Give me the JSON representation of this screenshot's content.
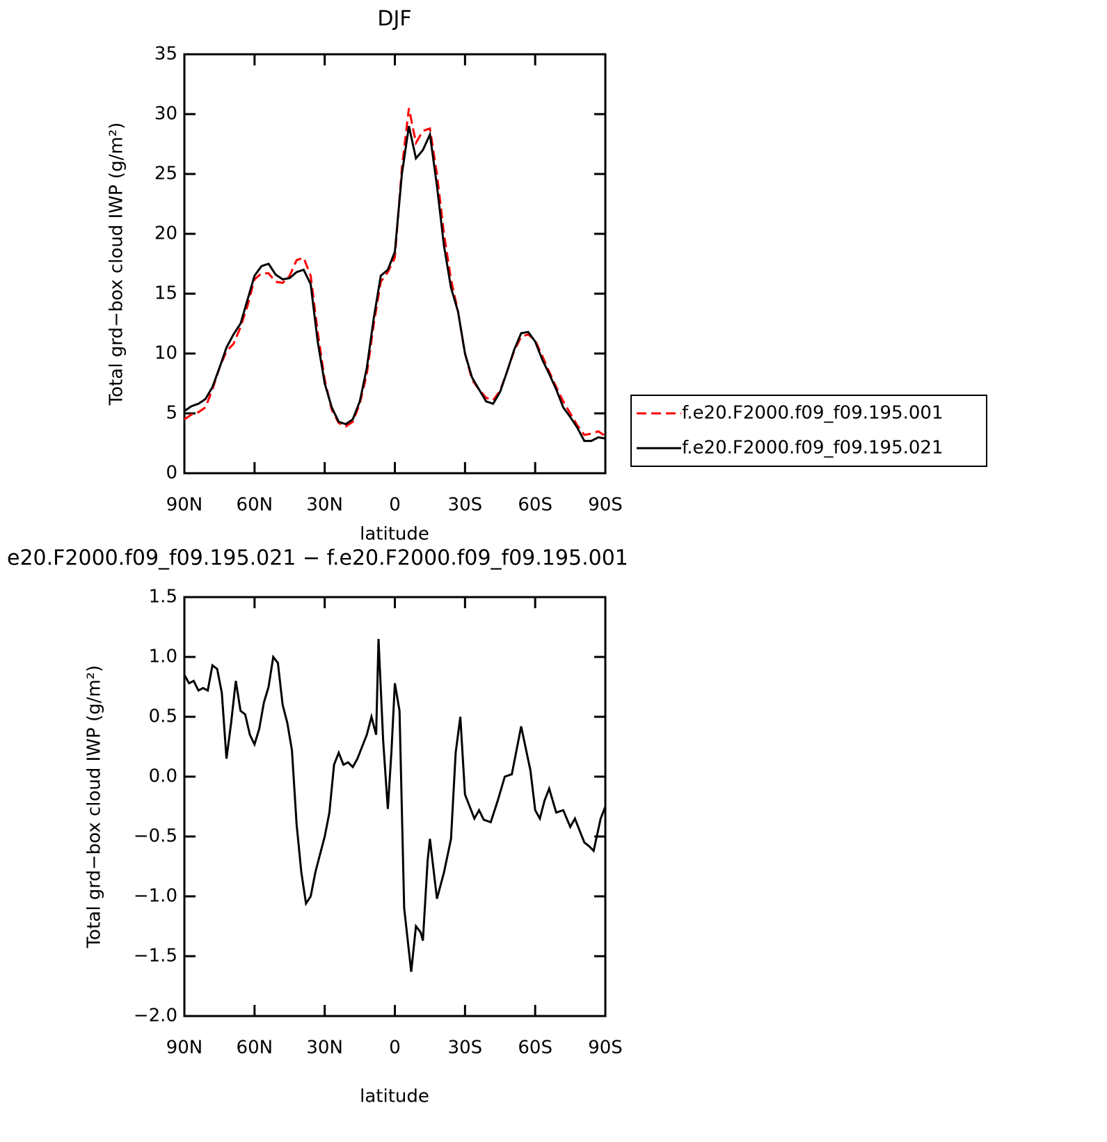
{
  "chart_data": [
    {
      "type": "line",
      "title": "DJF",
      "xlabel": "latitude",
      "ylabel": "Total grd−box cloud IWP (g/m²)",
      "x": [
        90,
        87,
        84,
        81,
        78,
        75,
        72,
        69,
        66,
        63,
        60,
        57,
        54,
        51,
        48,
        45,
        42,
        39,
        36,
        33,
        30,
        27,
        24,
        21,
        18,
        15,
        12,
        9,
        6,
        3,
        0,
        -3,
        -6,
        -9,
        -12,
        -15,
        -18,
        -21,
        -24,
        -27,
        -30,
        -33,
        -36,
        -39,
        -42,
        -45,
        -48,
        -51,
        -54,
        -57,
        -60,
        -63,
        -66,
        -69,
        -72,
        -75,
        -78,
        -81,
        -84,
        -87,
        -90
      ],
      "series": [
        {
          "name": "f.e20.F2000.f09_f09.195.001",
          "color": "#ff0000",
          "dash": true,
          "values": [
            4.5,
            4.9,
            5.1,
            5.5,
            7.0,
            8.8,
            10.2,
            10.8,
            12.2,
            14.0,
            16.2,
            16.7,
            16.7,
            16.0,
            15.9,
            16.5,
            17.8,
            18.0,
            16.5,
            11.8,
            7.8,
            5.3,
            4.2,
            3.9,
            4.3,
            5.8,
            8.3,
            12.5,
            16.0,
            16.8,
            18.0,
            25.5,
            30.5,
            27.6,
            28.6,
            28.8,
            25.0,
            20.0,
            16.2,
            13.5,
            10.0,
            7.8,
            7.0,
            6.3,
            6.1,
            6.9,
            8.5,
            10.2,
            11.4,
            11.6,
            11.1,
            9.8,
            8.5,
            7.2,
            6.0,
            5.0,
            4.0,
            3.2,
            3.3,
            3.5,
            3.1
          ]
        },
        {
          "name": "f.e20.F2000.f09_f09.195.021",
          "color": "#000000",
          "dash": false,
          "values": [
            5.2,
            5.6,
            5.8,
            6.2,
            7.2,
            8.8,
            10.5,
            11.6,
            12.5,
            14.5,
            16.5,
            17.3,
            17.5,
            16.6,
            16.2,
            16.3,
            16.8,
            17.0,
            15.8,
            11.0,
            7.5,
            5.5,
            4.3,
            4.1,
            4.5,
            6.0,
            8.8,
            13.0,
            16.5,
            17.0,
            18.5,
            25.0,
            29.0,
            26.3,
            27.0,
            28.3,
            24.0,
            19.0,
            15.5,
            13.5,
            10.0,
            8.0,
            7.0,
            6.0,
            5.8,
            6.8,
            8.5,
            10.3,
            11.7,
            11.8,
            11.0,
            9.5,
            8.3,
            7.0,
            5.5,
            4.7,
            3.8,
            2.7,
            2.7,
            3.0,
            2.9
          ]
        }
      ],
      "xlim": [
        90,
        -90
      ],
      "xticks": [
        {
          "value": 90,
          "label": "90N"
        },
        {
          "value": 60,
          "label": "60N"
        },
        {
          "value": 30,
          "label": "30N"
        },
        0,
        {
          "value": -30,
          "label": "30S"
        },
        {
          "value": -60,
          "label": "60S"
        },
        {
          "value": -90,
          "label": "90S"
        }
      ],
      "ylim": [
        0,
        35
      ],
      "yticks": [
        0,
        5,
        10,
        15,
        20,
        25,
        30,
        35
      ],
      "legend": "right"
    },
    {
      "type": "line",
      "title": "e20.F2000.f09_f09.195.021 − f.e20.F2000.f09_f09.195.001",
      "xlabel": "latitude",
      "ylabel": "Total grd−box cloud IWP (g/m²)",
      "x": [
        90,
        88,
        86,
        84,
        82,
        80,
        78,
        76,
        74,
        72,
        70,
        68,
        66,
        64,
        62,
        60,
        58,
        56,
        54,
        52,
        50,
        48,
        46,
        44,
        42,
        40,
        38,
        36,
        34,
        32,
        30,
        28,
        26,
        24,
        22,
        20,
        18,
        16,
        14,
        12,
        10,
        8,
        7,
        5,
        3,
        1.5,
        0,
        -2,
        -4,
        -7,
        -9,
        -11,
        -12,
        -14,
        -15,
        -18,
        -21,
        -24,
        -26,
        -28,
        -30,
        -32,
        -34,
        -36,
        -38,
        -41,
        -44,
        -47,
        -50,
        -54,
        -58,
        -60,
        -62,
        -64,
        -66,
        -69,
        -72,
        -75,
        -77,
        -79,
        -81,
        -83,
        -85,
        -88,
        -90
      ],
      "values": [
        0.85,
        0.78,
        0.8,
        0.72,
        0.74,
        0.72,
        0.93,
        0.9,
        0.7,
        0.15,
        0.45,
        0.8,
        0.55,
        0.52,
        0.35,
        0.27,
        0.4,
        0.62,
        0.75,
        1.0,
        0.95,
        0.6,
        0.45,
        0.22,
        -0.4,
        -0.8,
        -1.06,
        -1.0,
        -0.8,
        -0.65,
        -0.5,
        -0.3,
        0.1,
        0.2,
        0.1,
        0.12,
        0.08,
        0.15,
        0.25,
        0.35,
        0.5,
        0.35,
        1.15,
        0.3,
        -0.27,
        0.2,
        0.78,
        0.55,
        -1.1,
        -1.63,
        -1.25,
        -1.3,
        -1.37,
        -0.7,
        -0.52,
        -1.02,
        -0.8,
        -0.52,
        0.2,
        0.5,
        -0.15,
        -0.25,
        -0.35,
        -0.28,
        -0.36,
        -0.38,
        -0.2,
        0.0,
        0.02,
        0.42,
        0.05,
        -0.28,
        -0.35,
        -0.2,
        -0.1,
        -0.3,
        -0.28,
        -0.42,
        -0.35,
        -0.45,
        -0.55,
        -0.58,
        -0.62,
        -0.35,
        -0.25
      ],
      "color": "#000000",
      "xlim": [
        90,
        -90
      ],
      "xticks": [
        {
          "value": 90,
          "label": "90N"
        },
        {
          "value": 60,
          "label": "60N"
        },
        {
          "value": 30,
          "label": "30N"
        },
        0,
        {
          "value": -30,
          "label": "30S"
        },
        {
          "value": -60,
          "label": "60S"
        },
        {
          "value": -90,
          "label": "90S"
        }
      ],
      "ylim": [
        -2.0,
        1.5
      ],
      "yticks": [
        {
          "value": -2.0,
          "label": "−2.0"
        },
        {
          "value": -1.5,
          "label": "−1.5"
        },
        {
          "value": -1.0,
          "label": "−1.0"
        },
        {
          "value": -0.5,
          "label": "−0.5"
        },
        {
          "value": 0.0,
          "label": "0.0"
        },
        0.5,
        {
          "value": 1.0,
          "label": "1.0"
        },
        1.5
      ]
    }
  ]
}
